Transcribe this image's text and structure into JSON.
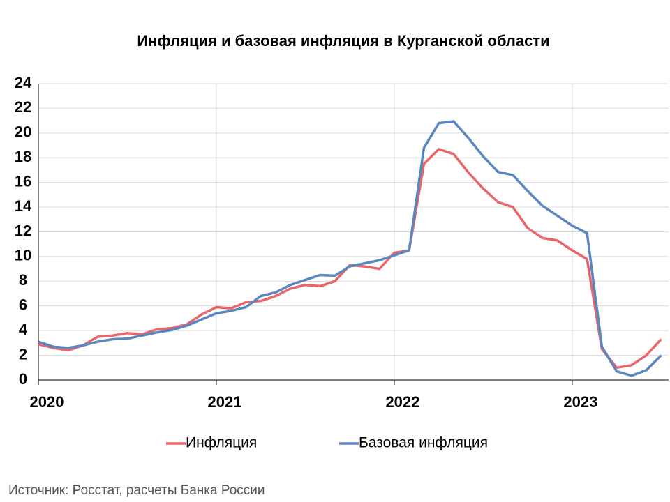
{
  "chart_data": {
    "type": "line",
    "title": "Инфляция и базовая инфляция в Курганской области",
    "source": "Источник: Росстат, расчеты Банка России",
    "x": [
      0,
      1,
      2,
      3,
      4,
      5,
      6,
      7,
      8,
      9,
      10,
      11,
      12,
      13,
      14,
      15,
      16,
      17,
      18,
      19,
      20,
      21,
      22,
      23,
      24,
      25,
      26,
      27,
      28,
      29,
      30,
      31,
      32,
      33,
      34,
      35,
      36,
      37,
      38,
      39,
      40,
      41,
      42
    ],
    "xlim": [
      0,
      42.5
    ],
    "xticks": [
      {
        "value": 0,
        "label": "2020"
      },
      {
        "value": 12,
        "label": "2021"
      },
      {
        "value": 24,
        "label": "2022"
      },
      {
        "value": 36,
        "label": "2023"
      }
    ],
    "ylim": [
      0,
      24
    ],
    "yticks": [
      0,
      2,
      4,
      6,
      8,
      10,
      12,
      14,
      16,
      18,
      20,
      22,
      24
    ],
    "grid": true,
    "legend": "bottom",
    "series": [
      {
        "name": "Инфляция",
        "color": "#e8666a",
        "values": [
          2.9,
          2.6,
          2.4,
          2.8,
          3.5,
          3.6,
          3.8,
          3.7,
          4.1,
          4.2,
          4.5,
          5.3,
          5.9,
          5.8,
          6.3,
          6.4,
          6.8,
          7.4,
          7.7,
          7.6,
          8.0,
          9.3,
          9.2,
          9.0,
          10.3,
          10.5,
          17.5,
          18.7,
          18.3,
          16.8,
          15.5,
          14.4,
          14.0,
          12.3,
          11.5,
          11.3,
          10.5,
          9.8,
          2.5,
          1.0,
          1.2,
          2.0,
          3.3
        ]
      },
      {
        "name": "Базовая инфляция",
        "color": "#5b87c0",
        "values": [
          3.1,
          2.7,
          2.6,
          2.8,
          3.1,
          3.3,
          3.35,
          3.6,
          3.85,
          4.05,
          4.4,
          4.9,
          5.4,
          5.6,
          5.9,
          6.8,
          7.1,
          7.7,
          8.1,
          8.5,
          8.45,
          9.2,
          9.45,
          9.7,
          10.1,
          10.5,
          18.8,
          20.8,
          20.95,
          19.6,
          18.1,
          16.85,
          16.6,
          15.3,
          14.1,
          13.3,
          12.5,
          11.9,
          2.7,
          0.7,
          0.35,
          0.8,
          2.0
        ]
      }
    ]
  }
}
